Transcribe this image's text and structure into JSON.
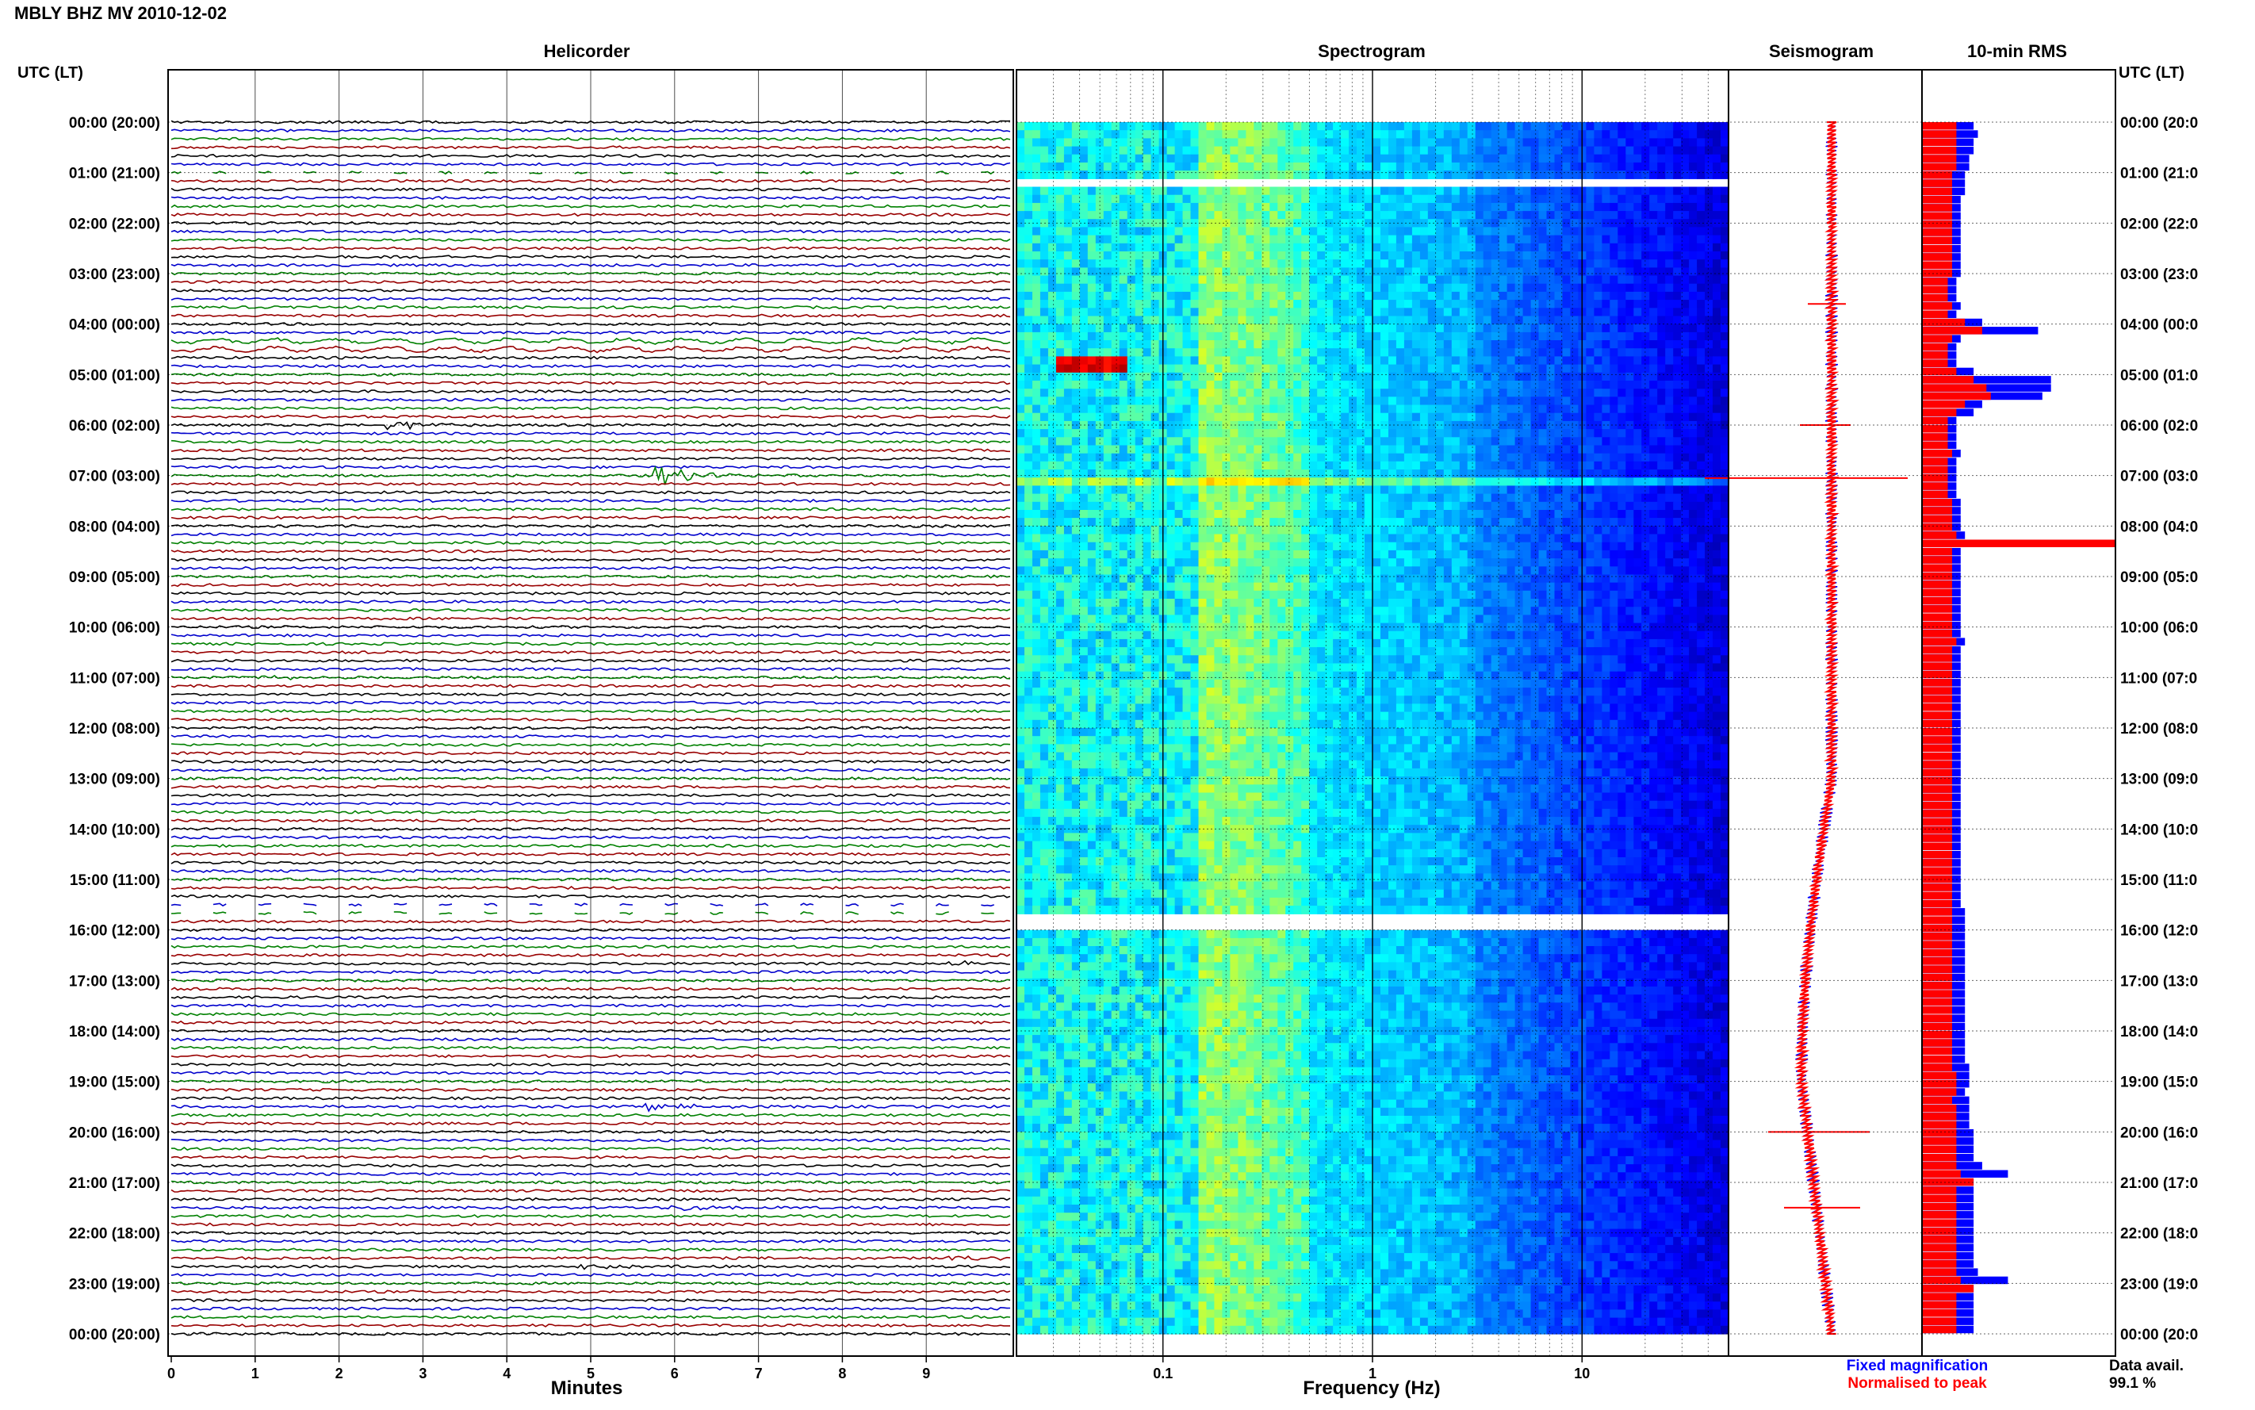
{
  "title_station": "MBLY BHZ MV",
  "title_date": ": 2010-12-02",
  "utc_label_left": "UTC (LT)",
  "utc_label_right": "UTC (LT)",
  "panels": {
    "helicorder": "Helicorder",
    "spectrogram": "Spectrogram",
    "seismogram": "Seismogram",
    "rms": "10-min RMS"
  },
  "time_labels": [
    "00:00 (20:00)",
    "01:00 (21:00)",
    "02:00 (22:00)",
    "03:00 (23:00)",
    "04:00 (00:00)",
    "05:00 (01:00)",
    "06:00 (02:00)",
    "07:00 (03:00)",
    "08:00 (04:00)",
    "09:00 (05:00)",
    "10:00 (06:00)",
    "11:00 (07:00)",
    "12:00 (08:00)",
    "13:00 (09:00)",
    "14:00 (10:00)",
    "15:00 (11:00)",
    "16:00 (12:00)",
    "17:00 (13:00)",
    "18:00 (14:00)",
    "19:00 (15:00)",
    "20:00 (16:00)",
    "21:00 (17:00)",
    "22:00 (18:00)",
    "23:00 (19:00)",
    "00:00 (20:00)"
  ],
  "right_time_labels": [
    "00:00 (20:0",
    "01:00 (21:0",
    "02:00 (22:0",
    "03:00 (23:0",
    "04:00 (00:0",
    "05:00 (01:0",
    "06:00 (02:0",
    "07:00 (03:0",
    "08:00 (04:0",
    "09:00 (05:0",
    "10:00 (06:0",
    "11:00 (07:0",
    "12:00 (08:0",
    "13:00 (09:0",
    "14:00 (10:0",
    "15:00 (11:0",
    "16:00 (12:0",
    "17:00 (13:0",
    "18:00 (14:0",
    "19:00 (15:0",
    "20:00 (16:0",
    "21:00 (17:0",
    "22:00 (18:0",
    "23:00 (19:0",
    "00:00 (20:0"
  ],
  "minutes_axis": {
    "label": "Minutes",
    "ticks": [
      "0",
      "1",
      "2",
      "3",
      "4",
      "5",
      "6",
      "7",
      "8",
      "9"
    ]
  },
  "frequency_axis": {
    "label": "Frequency (Hz)",
    "ticks": [
      "0.1",
      "1",
      "10"
    ]
  },
  "legend": {
    "fixed": "Fixed magnification",
    "normalised": "Normalised to peak",
    "fixed_color": "#0000ff",
    "normalised_color": "#ff0000"
  },
  "data_avail": {
    "label": "Data avail.",
    "value": "99.1 %"
  },
  "colors": {
    "trace_cycle": [
      "#000000",
      "#0000cc",
      "#008000",
      "#990000"
    ],
    "accent_blue": "#0000ff",
    "accent_red": "#ff0000"
  },
  "chart_data": {
    "type": "heatmap",
    "title": "MBLY BHZ MV : 2010-12-02",
    "helicorder": {
      "x_range_minutes": [
        0,
        10
      ],
      "lines_per_hour": 6,
      "events": [
        {
          "hour": 2.6,
          "minute": 2.6,
          "amp": 3
        },
        {
          "hour": 6.0,
          "minute": 2.6,
          "amp": 14
        },
        {
          "hour": 7.0,
          "minute": 5.8,
          "amp": 26
        },
        {
          "hour": 11.0,
          "minute": 1.1,
          "amp": 6
        },
        {
          "hour": 16.6,
          "minute": 9.3,
          "amp": 6
        },
        {
          "hour": 19.5,
          "minute": 5.7,
          "amp": 12
        },
        {
          "hour": 21.5,
          "minute": 6.0,
          "amp": 12
        },
        {
          "hour": 22.6,
          "minute": 4.9,
          "amp": 6
        },
        {
          "hour": 22.5,
          "minute": 9.3,
          "amp": 5
        }
      ],
      "gaps": [
        {
          "start_hour": 1.0,
          "end_hour": 1.1
        },
        {
          "start_hour": 15.5,
          "end_hour": 15.7
        }
      ]
    },
    "spectrogram": {
      "xlabel": "Frequency (Hz)",
      "x_scale": "log",
      "xlim": [
        0.02,
        50
      ],
      "gaps": [
        {
          "start_hour": 1.0,
          "end_hour": 1.2
        },
        {
          "start_hour": 15.6,
          "end_hour": 16.0
        }
      ]
    },
    "rms": {
      "series": [
        {
          "name": "Fixed magnification",
          "values": [
            12,
            13,
            12,
            12,
            11,
            11,
            10,
            10,
            10,
            9,
            9,
            9,
            9,
            9,
            9,
            9,
            9,
            9,
            9,
            8,
            8,
            8,
            9,
            8,
            14,
            27,
            9,
            8,
            8,
            8,
            12,
            30,
            30,
            28,
            14,
            12,
            8,
            8,
            8,
            8,
            9,
            8,
            8,
            8,
            8,
            8,
            9,
            9,
            9,
            9,
            10,
            26,
            9,
            9,
            9,
            9,
            9,
            9,
            9,
            9,
            9,
            9,
            9,
            10,
            9,
            9,
            9,
            9,
            9,
            9,
            9,
            9,
            9,
            9,
            9,
            9,
            9,
            9,
            9,
            9,
            9,
            9,
            9,
            9,
            9,
            9,
            9,
            9,
            9,
            9,
            9,
            9,
            9,
            9,
            9,
            9,
            10,
            10,
            10,
            10,
            10,
            10,
            10,
            10,
            10,
            10,
            10,
            10,
            10,
            10,
            10,
            10,
            10,
            10,
            10,
            11,
            11,
            11,
            10,
            11,
            11,
            11,
            11,
            12,
            12,
            12,
            12,
            14,
            20,
            12,
            12,
            12,
            12,
            12,
            12,
            12,
            12,
            12,
            12,
            12,
            13,
            20,
            12,
            12,
            12,
            12,
            12,
            12
          ]
        },
        {
          "name": "Normalised to peak",
          "values": [
            8,
            8,
            8,
            8,
            8,
            8,
            7,
            7,
            7,
            7,
            7,
            7,
            7,
            7,
            7,
            7,
            7,
            7,
            7,
            6,
            6,
            6,
            7,
            6,
            10,
            14,
            7,
            6,
            6,
            6,
            8,
            12,
            15,
            16,
            10,
            8,
            6,
            6,
            6,
            6,
            7,
            6,
            6,
            6,
            6,
            6,
            7,
            7,
            7,
            7,
            8,
            45,
            7,
            7,
            7,
            7,
            7,
            7,
            7,
            7,
            7,
            7,
            7,
            8,
            7,
            7,
            7,
            7,
            7,
            7,
            7,
            7,
            7,
            7,
            7,
            7,
            7,
            7,
            7,
            7,
            7,
            7,
            7,
            7,
            7,
            7,
            7,
            7,
            7,
            7,
            7,
            7,
            7,
            7,
            7,
            7,
            7,
            7,
            7,
            7,
            7,
            7,
            7,
            7,
            7,
            7,
            7,
            7,
            7,
            7,
            7,
            7,
            7,
            7,
            7,
            7,
            8,
            8,
            8,
            7,
            8,
            8,
            8,
            8,
            8,
            8,
            8,
            8,
            9,
            12,
            8,
            8,
            8,
            8,
            8,
            8,
            8,
            8,
            8,
            8,
            8,
            9,
            12,
            8,
            8,
            8,
            8,
            8,
            8
          ]
        }
      ]
    }
  }
}
